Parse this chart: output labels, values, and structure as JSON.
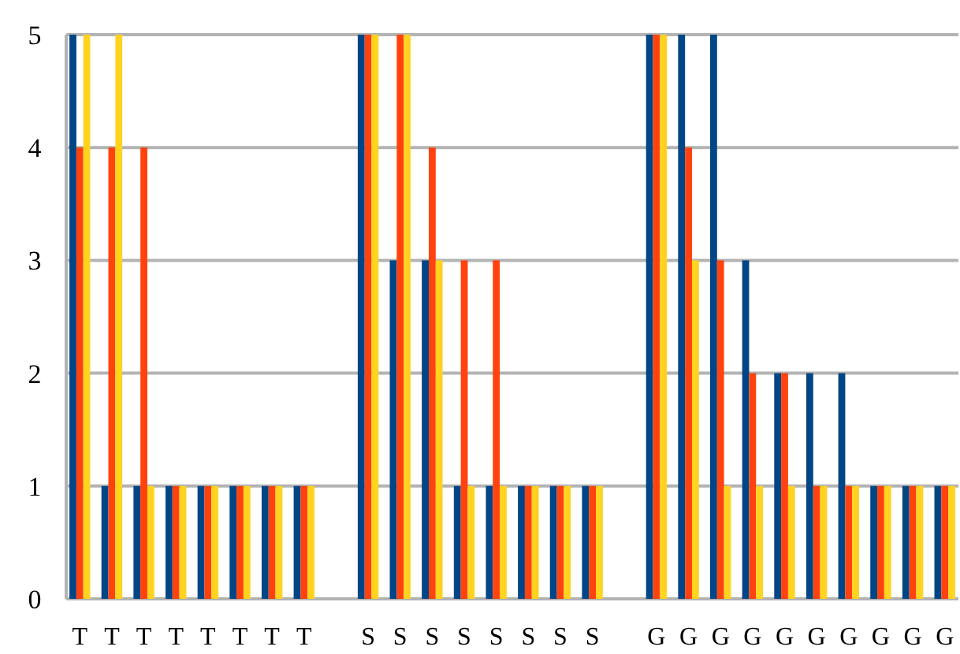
{
  "chart_data": {
    "type": "bar",
    "categories": [
      "T",
      "T",
      "T",
      "T",
      "T",
      "T",
      "T",
      "T",
      null,
      "S",
      "S",
      "S",
      "S",
      "S",
      "S",
      "S",
      "S",
      null,
      "G",
      "G",
      "G",
      "G",
      "G",
      "G",
      "G",
      "G",
      "G",
      "G"
    ],
    "series": [
      {
        "color": "#004586",
        "values": [
          5,
          1,
          1,
          1,
          1,
          1,
          1,
          1,
          null,
          5,
          3,
          3,
          1,
          1,
          1,
          1,
          1,
          null,
          5,
          5,
          5,
          3,
          2,
          2,
          2,
          1,
          1,
          1
        ]
      },
      {
        "color": "#ff420e",
        "values": [
          4,
          4,
          4,
          1,
          1,
          1,
          1,
          1,
          null,
          5,
          5,
          4,
          3,
          3,
          1,
          1,
          1,
          null,
          5,
          4,
          3,
          2,
          2,
          1,
          1,
          1,
          1,
          1
        ]
      },
      {
        "color": "#ffd320",
        "values": [
          5,
          5,
          1,
          1,
          1,
          1,
          1,
          1,
          null,
          5,
          5,
          3,
          1,
          1,
          1,
          1,
          1,
          null,
          5,
          3,
          1,
          1,
          1,
          1,
          1,
          1,
          1,
          1
        ]
      }
    ],
    "ylim": [
      0,
      5
    ],
    "yticks": [
      0,
      1,
      2,
      3,
      4,
      5
    ],
    "grid": "y"
  }
}
